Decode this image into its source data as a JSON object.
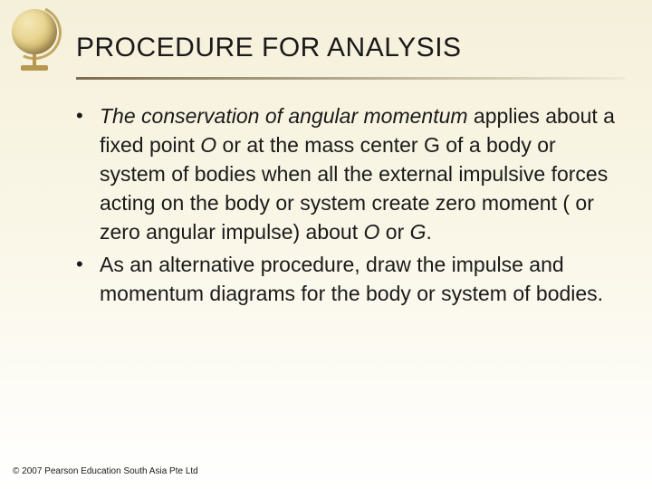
{
  "slide": {
    "title": "PROCEDURE FOR ANALYSIS",
    "bullets": [
      {
        "italic_prefix": "The conservation of angular momentum",
        "segments": [
          " applies about a fixed point ",
          "O",
          " or at the mass center G of a body or system of bodies when all the external impulsive forces acting on the body or system create zero moment ( or zero angular impulse) about ",
          "O",
          " or ",
          "G",
          "."
        ]
      },
      {
        "text": "As an alternative procedure, draw the impulse and momentum diagrams for the body or system of bodies."
      }
    ],
    "footer": "© 2007 Pearson Education South Asia Pte Ltd"
  },
  "colors": {
    "background_top": "#f5f0da",
    "background_bottom": "#ffffff",
    "text": "#1a1a1a",
    "globe_light": "#f5e8b8",
    "globe_dark": "#9a7f3d"
  }
}
